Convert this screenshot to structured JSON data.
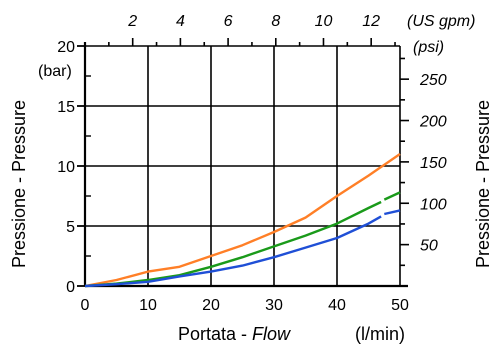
{
  "chart_data": {
    "type": "line",
    "xlabel_main": "Portata - ",
    "xlabel_italic": "Flow",
    "xunit": "(l/min)",
    "ylabel_left": "Pressione - Pressure",
    "ylabel_right": "Pressione - Pressure",
    "top_unit": "(US gpm)",
    "left_unit": "(bar)",
    "right_unit": "(psi)",
    "xlim": [
      0,
      50
    ],
    "ylim": [
      0,
      20
    ],
    "grid": true,
    "x_ticks": [
      "0",
      "10",
      "20",
      "30",
      "40",
      "50"
    ],
    "x_tick_values": [
      0,
      10,
      20,
      30,
      40,
      50
    ],
    "y_ticks": [
      "0",
      "5",
      "10",
      "15",
      "20"
    ],
    "y_tick_values": [
      0,
      5,
      10,
      15,
      20
    ],
    "top_ticks": [
      "2",
      "4",
      "6",
      "8",
      "10",
      "12"
    ],
    "top_tick_values": [
      2,
      4,
      6,
      8,
      10,
      12
    ],
    "right_ticks": [
      "50",
      "100",
      "150",
      "200",
      "250"
    ],
    "right_tick_values": [
      50,
      100,
      150,
      200,
      250
    ],
    "series": [
      {
        "color": "#ff7f27",
        "x": [
          0,
          5,
          10,
          15,
          20,
          25,
          30,
          35,
          40,
          45,
          50
        ],
        "y": [
          0,
          0.5,
          1.2,
          1.6,
          2.5,
          3.4,
          4.5,
          5.7,
          7.5,
          9.2,
          11.0
        ]
      },
      {
        "color": "#1a9a1a",
        "x": [
          0,
          5,
          10,
          15,
          20,
          25,
          30,
          35,
          40,
          45,
          47
        ],
        "y": [
          0,
          0.2,
          0.5,
          0.9,
          1.6,
          2.4,
          3.3,
          4.2,
          5.2,
          6.5,
          7.0
        ]
      },
      {
        "color": "#1f4fd6",
        "x": [
          0,
          5,
          10,
          15,
          20,
          25,
          30,
          35,
          40,
          45,
          47
        ],
        "y": [
          0,
          0.15,
          0.35,
          0.8,
          1.2,
          1.7,
          2.4,
          3.2,
          4.0,
          5.2,
          5.8
        ]
      }
    ],
    "series_tail": [
      {
        "color": "#1a9a1a",
        "x": [
          47.5,
          50
        ],
        "y": [
          7.2,
          7.8
        ]
      },
      {
        "color": "#1f4fd6",
        "x": [
          47.5,
          50
        ],
        "y": [
          6.0,
          6.3
        ]
      }
    ]
  }
}
